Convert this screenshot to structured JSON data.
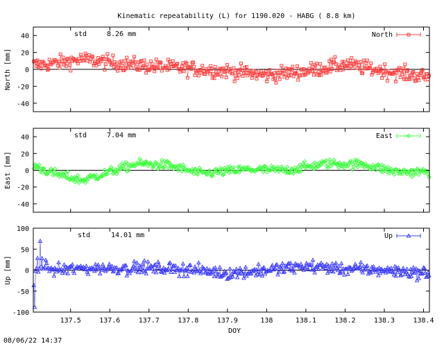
{
  "title": "Kinematic repeatability (L) for 1190.020 - HABG  (  8.8 km)",
  "footer_timestamp": "08/06/22 14:37",
  "chart_data": [
    {
      "type": "scatter",
      "series_name": "North",
      "color": "#ff4040",
      "marker": "square",
      "std_label": "std",
      "std_value": "8.26 mm",
      "ylabel": "North [mm]",
      "ylim": [
        -50,
        50
      ],
      "yticks": [
        -40,
        -20,
        0,
        20,
        40
      ],
      "trend": [
        [
          137.405,
          5
        ],
        [
          137.46,
          7
        ],
        [
          137.53,
          12
        ],
        [
          137.6,
          8
        ],
        [
          137.7,
          4
        ],
        [
          137.8,
          1
        ],
        [
          137.9,
          -2
        ],
        [
          138.0,
          -7
        ],
        [
          138.1,
          -2
        ],
        [
          138.2,
          6
        ],
        [
          138.3,
          -2
        ],
        [
          138.41,
          -9
        ]
      ],
      "noise": 8
    },
    {
      "type": "scatter",
      "series_name": "East",
      "color": "#40ff40",
      "marker": "diamond",
      "std_label": "std",
      "std_value": "7.04 mm",
      "ylabel": "East [mm]",
      "ylim": [
        -50,
        50
      ],
      "yticks": [
        -40,
        -20,
        0,
        20,
        40
      ],
      "trend": [
        [
          137.405,
          6
        ],
        [
          137.45,
          -3
        ],
        [
          137.53,
          -12
        ],
        [
          137.6,
          -2
        ],
        [
          137.67,
          8
        ],
        [
          137.75,
          6
        ],
        [
          137.83,
          -4
        ],
        [
          137.95,
          1
        ],
        [
          138.05,
          0
        ],
        [
          138.15,
          8
        ],
        [
          138.25,
          7
        ],
        [
          138.33,
          -2
        ],
        [
          138.41,
          -2
        ]
      ],
      "noise": 5
    },
    {
      "type": "scatter",
      "series_name": "Up",
      "color": "#4040ff",
      "marker": "triangle",
      "std_label": "std",
      "std_value": "14.01 mm",
      "ylabel": "Up [mm]",
      "ylim": [
        -100,
        100
      ],
      "yticks": [
        -100,
        -50,
        0,
        50,
        100
      ],
      "trend": [
        [
          137.405,
          -30
        ],
        [
          137.425,
          20
        ],
        [
          137.45,
          0
        ],
        [
          137.55,
          5
        ],
        [
          137.7,
          5
        ],
        [
          137.8,
          2
        ],
        [
          137.9,
          -8
        ],
        [
          138.0,
          0
        ],
        [
          138.1,
          10
        ],
        [
          138.2,
          3
        ],
        [
          138.3,
          0
        ],
        [
          138.41,
          -8
        ]
      ],
      "noise": 13
    }
  ],
  "x_axis": {
    "label": "DOY",
    "xlim": [
      137.405,
      138.415
    ],
    "ticks": [
      {
        "value": 137.5,
        "label": "137.5"
      },
      {
        "value": 137.6,
        "label": "137.6"
      },
      {
        "value": 137.7,
        "label": "137.7"
      },
      {
        "value": 137.8,
        "label": "137.8"
      },
      {
        "value": 137.9,
        "label": "137.9"
      },
      {
        "value": 138.0,
        "label": "138"
      },
      {
        "value": 138.1,
        "label": "138.1"
      },
      {
        "value": 138.2,
        "label": "138.2"
      },
      {
        "value": 138.3,
        "label": "138.3"
      },
      {
        "value": 138.4,
        "label": "138.4"
      }
    ]
  }
}
